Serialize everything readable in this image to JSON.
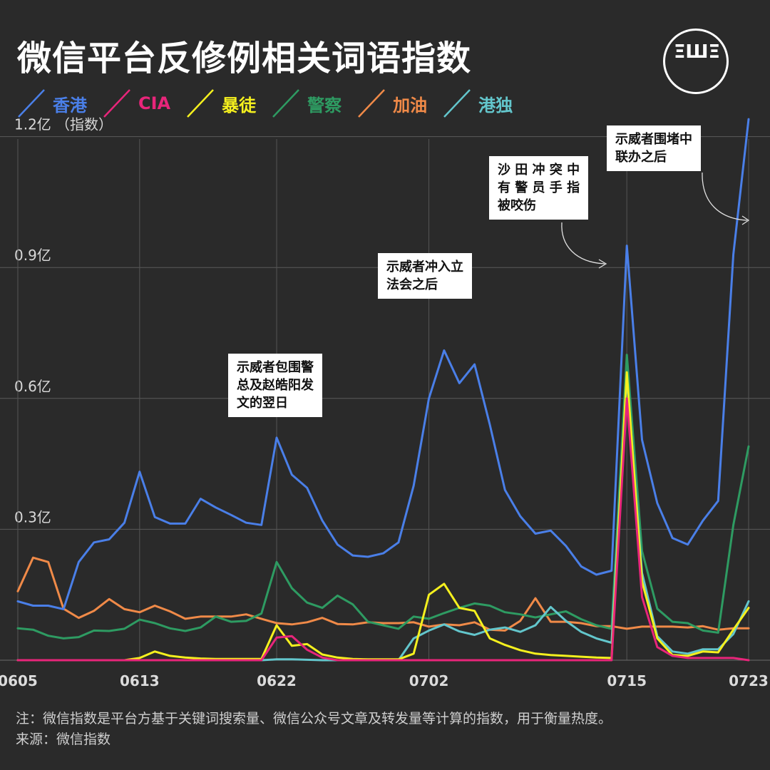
{
  "header": {
    "title": "微信平台反修例相关词语指数",
    "logo_text": "ΞШΞ"
  },
  "legend": [
    {
      "label": "香港",
      "color": "#4a7fe8"
    },
    {
      "label": "CIA",
      "color": "#e8257a"
    },
    {
      "label": "暴徒",
      "color": "#f5f01e"
    },
    {
      "label": "警察",
      "color": "#2e9b62"
    },
    {
      "label": "加油",
      "color": "#f08a48"
    },
    {
      "label": "港独",
      "color": "#63c6cc"
    }
  ],
  "annotations": {
    "a1": "示威者包围警\n总及赵皓阳发\n文的翌日",
    "a2": "示威者冲入立\n法会之后",
    "a3": "沙 田 冲 突 中\n有 警 员 手 指\n被咬伤",
    "a4": "示威者围堵中\n联办之后"
  },
  "footer": {
    "note": "注：微信指数是平台方基于关键词搜索量、微信公众号文章及转发量等计算的指数，用于衡量热度。",
    "source": "来源：微信指数"
  },
  "chart_data": {
    "type": "line",
    "ylabel": "（指数）",
    "y_ticks": [
      {
        "value": 0.3,
        "label": "0.3亿"
      },
      {
        "value": 0.6,
        "label": "0.6亿"
      },
      {
        "value": 0.9,
        "label": "0.9亿"
      },
      {
        "value": 1.2,
        "label": "1.2亿"
      }
    ],
    "ylim": [
      0,
      1.34
    ],
    "x_ticks": [
      {
        "index": 0,
        "label": "0605"
      },
      {
        "index": 8,
        "label": "0613"
      },
      {
        "index": 17,
        "label": "0622"
      },
      {
        "index": 27,
        "label": "0702"
      },
      {
        "index": 40,
        "label": "0715"
      },
      {
        "index": 48,
        "label": "0723"
      }
    ],
    "x_count": 49,
    "series": [
      {
        "name": "香港",
        "color": "#4a7fe8",
        "values": [
          0.135,
          0.125,
          0.125,
          0.117,
          0.225,
          0.27,
          0.277,
          0.315,
          0.432,
          0.328,
          0.313,
          0.313,
          0.37,
          0.35,
          0.333,
          0.315,
          0.31,
          0.51,
          0.425,
          0.395,
          0.32,
          0.265,
          0.24,
          0.237,
          0.245,
          0.27,
          0.4,
          0.6,
          0.71,
          0.635,
          0.678,
          0.54,
          0.39,
          0.33,
          0.29,
          0.297,
          0.262,
          0.215,
          0.196,
          0.205,
          0.95,
          0.505,
          0.36,
          0.28,
          0.265,
          0.32,
          0.365,
          0.93,
          1.24
        ]
      },
      {
        "name": "CIA",
        "color": "#e8257a",
        "values": [
          0,
          0,
          0,
          0,
          0,
          0,
          0,
          0,
          0,
          0,
          0,
          0,
          0,
          0,
          0,
          0,
          0,
          0.052,
          0.055,
          0.024,
          0.006,
          0,
          0,
          0,
          0,
          0,
          0,
          0,
          0,
          0,
          0,
          0,
          0,
          0,
          0,
          0,
          0,
          0,
          0,
          0,
          0.6,
          0.145,
          0.03,
          0.01,
          0.005,
          0.005,
          0.005,
          0.005,
          0
        ]
      },
      {
        "name": "暴徒",
        "color": "#f5f01e",
        "values": [
          0,
          0,
          0,
          0,
          0,
          0,
          0,
          0,
          0.005,
          0.02,
          0.01,
          0.006,
          0.004,
          0.003,
          0.003,
          0.003,
          0.003,
          0.08,
          0.033,
          0.037,
          0.013,
          0.006,
          0.003,
          0.002,
          0.002,
          0.002,
          0.015,
          0.15,
          0.175,
          0.12,
          0.113,
          0.05,
          0.035,
          0.023,
          0.015,
          0.012,
          0.01,
          0.008,
          0.006,
          0.005,
          0.66,
          0.18,
          0.05,
          0.012,
          0.01,
          0.02,
          0.018,
          0.07,
          0.12
        ]
      },
      {
        "name": "警察",
        "color": "#2e9b62",
        "values": [
          0.073,
          0.07,
          0.056,
          0.05,
          0.053,
          0.068,
          0.067,
          0.072,
          0.093,
          0.085,
          0.073,
          0.067,
          0.075,
          0.1,
          0.088,
          0.09,
          0.107,
          0.225,
          0.165,
          0.132,
          0.12,
          0.148,
          0.128,
          0.088,
          0.08,
          0.072,
          0.1,
          0.095,
          0.108,
          0.12,
          0.13,
          0.125,
          0.11,
          0.105,
          0.098,
          0.105,
          0.112,
          0.094,
          0.08,
          0.072,
          0.7,
          0.25,
          0.118,
          0.088,
          0.085,
          0.068,
          0.063,
          0.31,
          0.49
        ]
      },
      {
        "name": "加油",
        "color": "#f08a48",
        "values": [
          0.158,
          0.235,
          0.225,
          0.118,
          0.097,
          0.113,
          0.14,
          0.117,
          0.11,
          0.125,
          0.112,
          0.095,
          0.1,
          0.1,
          0.1,
          0.105,
          0.095,
          0.085,
          0.082,
          0.087,
          0.097,
          0.083,
          0.082,
          0.087,
          0.085,
          0.085,
          0.087,
          0.077,
          0.082,
          0.08,
          0.087,
          0.07,
          0.068,
          0.09,
          0.142,
          0.088,
          0.088,
          0.085,
          0.078,
          0.078,
          0.072,
          0.077,
          0.077,
          0.077,
          0.075,
          0.078,
          0.07,
          0.073,
          0.073
        ]
      },
      {
        "name": "港独",
        "color": "#63c6cc",
        "values": [
          0,
          0,
          0,
          0,
          0,
          0,
          0,
          0,
          0,
          0,
          0,
          0,
          0,
          0,
          0,
          0,
          0,
          0.002,
          0.002,
          0.001,
          0,
          0,
          0,
          0,
          0,
          0,
          0.05,
          0.068,
          0.082,
          0.066,
          0.058,
          0.07,
          0.075,
          0.065,
          0.08,
          0.122,
          0.09,
          0.065,
          0.05,
          0.04,
          0.65,
          0.2,
          0.055,
          0.02,
          0.015,
          0.025,
          0.025,
          0.06,
          0.135
        ]
      }
    ]
  }
}
